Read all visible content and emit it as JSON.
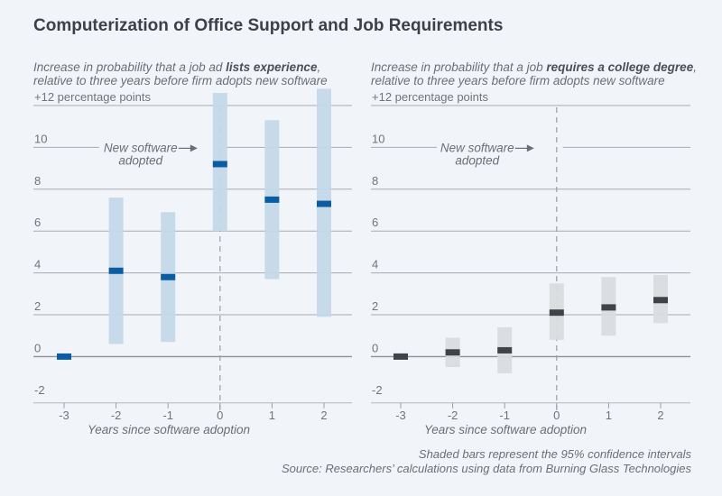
{
  "title": "Computerization of Office Support and Job Requirements",
  "footer": {
    "line1": "Shaded bars represent the 95% confidence intervals",
    "line2": "Source: Researchers’ calculations using data from Burning Glass Technologies"
  },
  "chart_data": [
    {
      "type": "scatter",
      "subtitle_pre": "Increase in probability that a job ad ",
      "subtitle_bold": "lists experience",
      "subtitle_post": ",",
      "subtitle_line2": "relative to three years before firm adopts new software",
      "ylabel_top": "+12 percentage points",
      "xlabel": "Years since software adoption",
      "annotation": [
        "New software",
        "adopted"
      ],
      "x": [
        -3,
        -2,
        -1,
        0,
        1,
        2
      ],
      "values": [
        0,
        4.1,
        3.8,
        9.2,
        7.5,
        7.3
      ],
      "ci_low": [
        0,
        0.6,
        0.7,
        6.0,
        3.7,
        1.9
      ],
      "ci_high": [
        0,
        7.6,
        6.9,
        12.6,
        11.3,
        12.8
      ],
      "ylim": [
        -2,
        12
      ],
      "yticks": [
        "-2",
        "0",
        "2",
        "4",
        "6",
        "8",
        "10",
        "+12 percentage points"
      ],
      "xticks": [
        "-3",
        "-2",
        "-1",
        "0",
        "1",
        "2"
      ],
      "point_color": "#0b5da3",
      "ci_color": "#c3d8e8",
      "grid": true
    },
    {
      "type": "scatter",
      "subtitle_pre": "Increase in probability that a job ",
      "subtitle_bold": "requires a college degree",
      "subtitle_post": ",",
      "subtitle_line2": "relative to three years before firm adopts new software",
      "ylabel_top": "+12 percentage points",
      "xlabel": "Years since software adoption",
      "annotation": [
        "New software",
        "adopted"
      ],
      "x": [
        -3,
        -2,
        -1,
        0,
        1,
        2
      ],
      "values": [
        0,
        0.2,
        0.3,
        2.1,
        2.35,
        2.7
      ],
      "ci_low": [
        0,
        -0.5,
        -0.8,
        0.8,
        1.0,
        1.6
      ],
      "ci_high": [
        0,
        0.9,
        1.4,
        3.5,
        3.8,
        3.9
      ],
      "ylim": [
        -2,
        12
      ],
      "yticks": [
        "-2",
        "0",
        "2",
        "4",
        "6",
        "8",
        "10",
        "+12 percentage points"
      ],
      "xticks": [
        "-3",
        "-2",
        "-1",
        "0",
        "1",
        "2"
      ],
      "point_color": "#404349",
      "ci_color": "#d9dcdf",
      "grid": true
    }
  ]
}
